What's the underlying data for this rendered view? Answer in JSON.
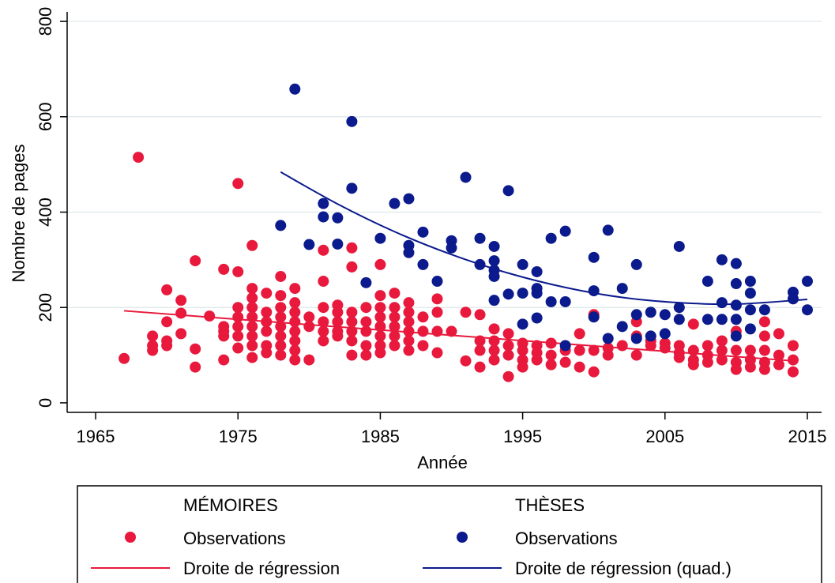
{
  "chart_data": {
    "type": "scatter",
    "xlabel": "Année",
    "ylabel": "Nombre de pages",
    "xlim": [
      1963,
      2016
    ],
    "ylim": [
      -20,
      820
    ],
    "xticks": [
      1965,
      1975,
      1985,
      1995,
      2005,
      2015
    ],
    "yticks": [
      0,
      200,
      400,
      600,
      800
    ],
    "grid": true,
    "groups": [
      {
        "title": "MÉMOIRES",
        "series": [
          {
            "name": "Observations",
            "type": "scatter",
            "color": "#e8193c",
            "x": [
              1967,
              1968,
              1969,
              1969,
              1969,
              1970,
              1970,
              1970,
              1970,
              1971,
              1971,
              1971,
              1972,
              1972,
              1972,
              1973,
              1974,
              1974,
              1974,
              1974,
              1974,
              1975,
              1975,
              1975,
              1975,
              1975,
              1975,
              1975,
              1976,
              1976,
              1976,
              1976,
              1976,
              1976,
              1976,
              1976,
              1976,
              1977,
              1977,
              1977,
              1977,
              1977,
              1977,
              1978,
              1978,
              1978,
              1978,
              1978,
              1978,
              1978,
              1978,
              1979,
              1979,
              1979,
              1979,
              1979,
              1979,
              1979,
              1979,
              1980,
              1980,
              1980,
              1981,
              1981,
              1981,
              1981,
              1981,
              1981,
              1982,
              1982,
              1982,
              1982,
              1982,
              1983,
              1983,
              1983,
              1983,
              1983,
              1983,
              1983,
              1984,
              1984,
              1984,
              1984,
              1984,
              1985,
              1985,
              1985,
              1985,
              1985,
              1985,
              1985,
              1985,
              1986,
              1986,
              1986,
              1986,
              1986,
              1986,
              1987,
              1987,
              1987,
              1987,
              1987,
              1987,
              1988,
              1988,
              1988,
              1989,
              1989,
              1989,
              1989,
              1990,
              1991,
              1991,
              1992,
              1992,
              1992,
              1992,
              1993,
              1993,
              1993,
              1993,
              1994,
              1994,
              1994,
              1994,
              1995,
              1995,
              1995,
              1995,
              1996,
              1996,
              1996,
              1997,
              1997,
              1997,
              1998,
              1998,
              1999,
              1999,
              1999,
              2000,
              2000,
              2000,
              2001,
              2001,
              2002,
              2003,
              2003,
              2003,
              2004,
              2004,
              2005,
              2005,
              2006,
              2006,
              2006,
              2007,
              2007,
              2007,
              2007,
              2008,
              2008,
              2008,
              2009,
              2009,
              2009,
              2010,
              2010,
              2010,
              2010,
              2011,
              2011,
              2011,
              2012,
              2012,
              2012,
              2012,
              2012,
              2013,
              2013,
              2013,
              2014,
              2014,
              2014
            ],
            "values": [
              93,
              515,
              140,
              120,
              110,
              237,
              170,
              130,
              120,
              215,
              188,
              145,
              298,
              113,
              75,
              182,
              280,
              160,
              150,
              140,
              90,
              460,
              275,
              200,
              180,
              160,
              140,
              115,
              330,
              240,
              220,
              200,
              180,
              160,
              140,
              120,
              95,
              230,
              190,
              170,
              150,
              120,
              105,
              265,
              225,
              200,
              180,
              160,
              140,
              120,
              100,
              240,
              210,
              190,
              170,
              150,
              130,
              110,
              90,
              180,
              160,
              90,
              320,
              255,
              200,
              170,
              150,
              130,
              205,
              190,
              170,
              150,
              140,
              325,
              285,
              190,
              170,
              150,
              130,
              100,
              200,
              170,
              150,
              120,
              100,
              290,
              225,
              200,
              180,
              160,
              140,
              120,
              105,
              230,
              200,
              180,
              160,
              140,
              120,
              210,
              190,
              170,
              150,
              130,
              110,
              180,
              150,
              120,
              218,
              190,
              150,
              105,
              150,
              190,
              88,
              185,
              130,
              110,
              75,
              155,
              130,
              110,
              90,
              145,
              120,
              100,
              55,
              125,
              110,
              90,
              75,
              120,
              105,
              90,
              125,
              100,
              80,
              110,
              85,
              145,
              110,
              75,
              185,
              110,
              65,
              115,
              100,
              120,
              170,
              140,
              100,
              130,
              120,
              125,
              115,
              120,
              105,
              95,
              165,
              110,
              90,
              80,
              120,
              100,
              85,
              130,
              110,
              90,
              150,
              110,
              85,
              70,
              110,
              90,
              75,
              170,
              140,
              110,
              85,
              70,
              145,
              100,
              80,
              120,
              90,
              65
            ]
          },
          {
            "name": "Droite de régression",
            "type": "line",
            "color": "#e8193c",
            "x": [
              1967,
              2014
            ],
            "values": [
              193,
              88
            ]
          }
        ]
      },
      {
        "title": "THÈSES",
        "series": [
          {
            "name": "Observations",
            "type": "scatter",
            "color": "#0b1a8c",
            "x": [
              1978,
              1979,
              1980,
              1981,
              1981,
              1982,
              1982,
              1983,
              1983,
              1984,
              1985,
              1986,
              1987,
              1987,
              1987,
              1988,
              1988,
              1989,
              1990,
              1990,
              1991,
              1992,
              1992,
              1993,
              1993,
              1993,
              1993,
              1993,
              1994,
              1994,
              1995,
              1995,
              1995,
              1996,
              1996,
              1996,
              1996,
              1997,
              1997,
              1998,
              1998,
              1998,
              2000,
              2000,
              2000,
              2001,
              2001,
              2002,
              2002,
              2003,
              2003,
              2003,
              2004,
              2004,
              2005,
              2005,
              2006,
              2006,
              2006,
              2008,
              2008,
              2009,
              2009,
              2009,
              2010,
              2010,
              2010,
              2010,
              2010,
              2011,
              2011,
              2011,
              2011,
              2012,
              2014,
              2014,
              2015,
              2015
            ],
            "values": [
              372,
              658,
              332,
              418,
              390,
              388,
              333,
              590,
              450,
              252,
              345,
              418,
              428,
              330,
              315,
              358,
              290,
              255,
              340,
              325,
              473,
              345,
              290,
              328,
              298,
              278,
              265,
              215,
              445,
              228,
              290,
              230,
              165,
              275,
              240,
              230,
              178,
              345,
              212,
              360,
              212,
              120,
              305,
              235,
              180,
              362,
              135,
              240,
              160,
              290,
              185,
              135,
              190,
              140,
              185,
              145,
              328,
              200,
              175,
              255,
              175,
              300,
              210,
              175,
              292,
              250,
              205,
              175,
              140,
              255,
              230,
              195,
              155,
              195,
              232,
              218,
              255,
              195
            ]
          },
          {
            "name": "Droite de régression (quad.)",
            "type": "line",
            "color": "#0b1a8c",
            "x": [
              1978,
              1982,
              1986,
              1990,
              1994,
              1998,
              2002,
              2006,
              2010,
              2015
            ],
            "values": [
              484,
              417,
              359,
              311,
              272,
              242,
              221,
              210,
              207,
              217
            ]
          }
        ]
      }
    ]
  }
}
